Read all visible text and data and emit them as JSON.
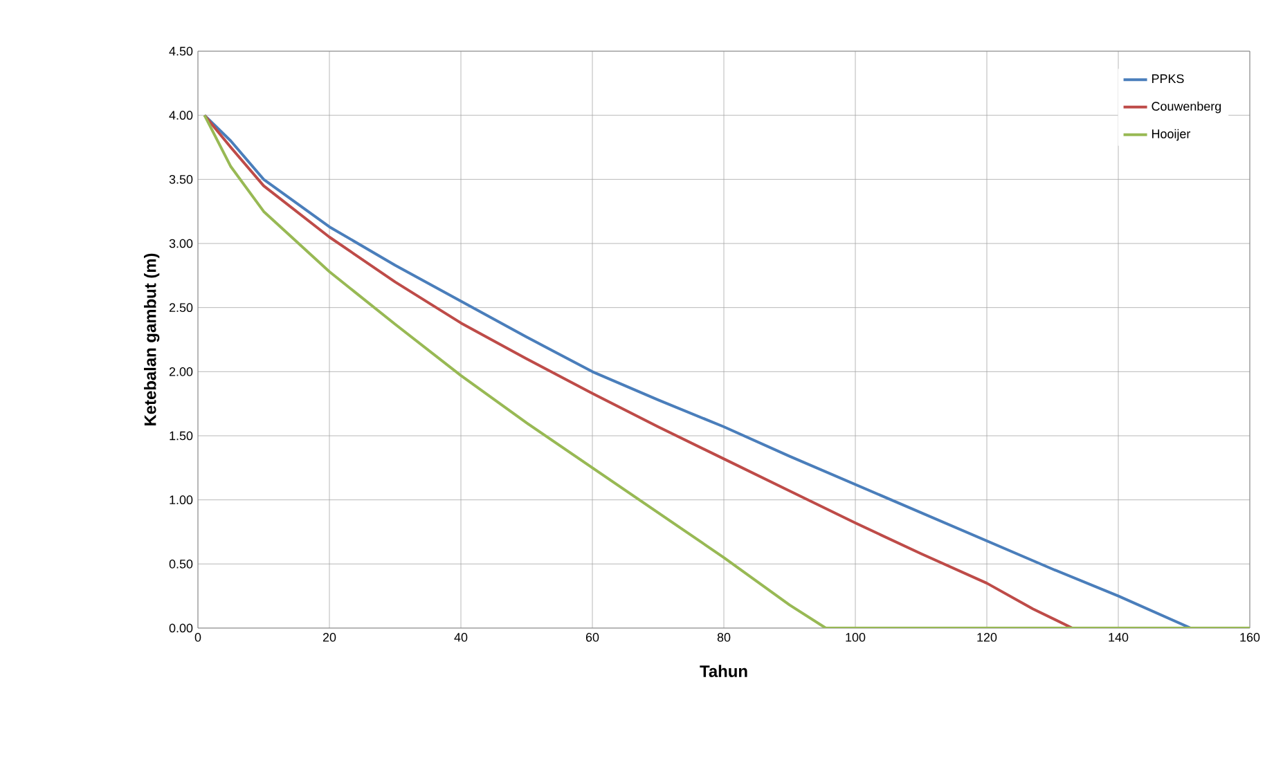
{
  "chart_data": {
    "type": "line",
    "xlabel": "Tahun",
    "ylabel": "Ketebalan gambut (m)",
    "xlim": [
      0,
      160
    ],
    "xticks": [
      0,
      20,
      40,
      60,
      80,
      100,
      120,
      140,
      160
    ],
    "ylim": [
      0,
      4.5
    ],
    "yticks": [
      {
        "value": 0,
        "label": "0.00"
      },
      {
        "value": 0.5,
        "label": "0.50"
      },
      {
        "value": 1,
        "label": "1.00"
      },
      {
        "value": 1.5,
        "label": "1.50"
      },
      {
        "value": 2,
        "label": "2.00"
      },
      {
        "value": 2.5,
        "label": "2.50"
      },
      {
        "value": 3,
        "label": "3.00"
      },
      {
        "value": 3.5,
        "label": "3.50"
      },
      {
        "value": 4,
        "label": "4.00"
      },
      {
        "value": 4.5,
        "label": "4.50"
      }
    ],
    "grid": true,
    "legend": "top right",
    "marker": "none",
    "line_style": "solid",
    "series": [
      {
        "name": "PPKS",
        "color": "#4a7ebb",
        "x": [
          1,
          5,
          10,
          20,
          30,
          40,
          50,
          60,
          70,
          80,
          90,
          100,
          110,
          120,
          130,
          140,
          151,
          160
        ],
        "values": [
          4.0,
          3.8,
          3.5,
          3.13,
          2.83,
          2.55,
          2.27,
          2.0,
          1.78,
          1.57,
          1.34,
          1.12,
          0.9,
          0.68,
          0.46,
          0.25,
          0,
          0
        ]
      },
      {
        "name": "Couwenberg",
        "color": "#be4b48",
        "x": [
          1,
          5,
          10,
          20,
          30,
          40,
          50,
          60,
          70,
          80,
          90,
          100,
          110,
          120,
          127,
          133,
          160
        ],
        "values": [
          4.0,
          3.75,
          3.45,
          3.05,
          2.7,
          2.38,
          2.1,
          1.83,
          1.57,
          1.32,
          1.07,
          0.82,
          0.58,
          0.35,
          0.15,
          0,
          0
        ]
      },
      {
        "name": "Hooijer",
        "color": "#98b954",
        "x": [
          1,
          5,
          10,
          20,
          30,
          40,
          50,
          60,
          70,
          80,
          90,
          95.5,
          160
        ],
        "values": [
          4.0,
          3.6,
          3.25,
          2.78,
          2.37,
          1.97,
          1.6,
          1.25,
          0.9,
          0.55,
          0.18,
          0,
          0
        ]
      }
    ]
  }
}
